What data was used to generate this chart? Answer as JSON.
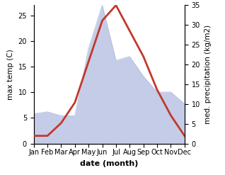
{
  "months": [
    "Jan",
    "Feb",
    "Mar",
    "Apr",
    "May",
    "Jun",
    "Jul",
    "Aug",
    "Sep",
    "Oct",
    "Nov",
    "Dec"
  ],
  "temperature": [
    1.5,
    1.5,
    4.0,
    8.0,
    16.0,
    24.0,
    27.0,
    22.0,
    17.0,
    10.5,
    5.5,
    1.5
  ],
  "precipitation": [
    7.5,
    8.0,
    7.0,
    7.0,
    24.0,
    35.0,
    21.0,
    22.0,
    17.0,
    13.0,
    13.0,
    10.0
  ],
  "temp_color": "#c0392b",
  "precip_fill_color": "#c5cce8",
  "precip_edge_color": "#b0badc",
  "ylabel_left": "max temp (C)",
  "ylabel_right": "med. precipitation (kg/m2)",
  "xlabel": "date (month)",
  "ylim_left": [
    0,
    27
  ],
  "ylim_right": [
    0,
    35
  ],
  "yticks_left": [
    0,
    5,
    10,
    15,
    20,
    25
  ],
  "yticks_right": [
    0,
    5,
    10,
    15,
    20,
    25,
    30,
    35
  ],
  "bg_color": "#ffffff",
  "temp_linewidth": 2.0,
  "xlabel_fontsize": 8,
  "ylabel_fontsize": 7.5,
  "tick_fontsize": 7
}
